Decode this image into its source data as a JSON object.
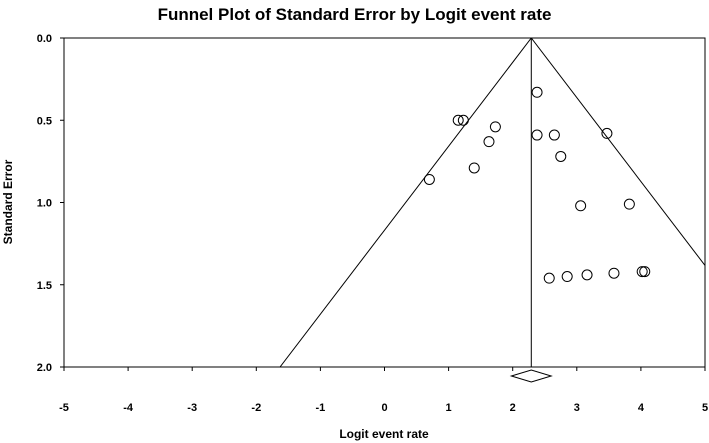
{
  "chart_data": {
    "type": "scatter",
    "title": "Funnel Plot of Standard Error by Logit event rate",
    "xlabel": "Logit event rate",
    "ylabel": "Standard Error",
    "xlim": [
      -5,
      5
    ],
    "ylim": [
      2.0,
      0.0
    ],
    "y_axis_inverted": true,
    "x_ticks": [
      "-5",
      "-4",
      "-3",
      "-2",
      "-1",
      "0",
      "1",
      "2",
      "3",
      "4",
      "5"
    ],
    "y_ticks": [
      "0.0",
      "0.5",
      "1.0",
      "1.5",
      "2.0"
    ],
    "grid": false,
    "legend": "none",
    "marker": "open-circle",
    "summary_estimate": 2.29,
    "funnel_z": 1.96,
    "points": [
      {
        "x": 2.38,
        "y": 0.33
      },
      {
        "x": 1.15,
        "y": 0.5
      },
      {
        "x": 1.23,
        "y": 0.5
      },
      {
        "x": 1.73,
        "y": 0.54
      },
      {
        "x": 2.38,
        "y": 0.59
      },
      {
        "x": 2.65,
        "y": 0.59
      },
      {
        "x": 3.47,
        "y": 0.58
      },
      {
        "x": 1.63,
        "y": 0.63
      },
      {
        "x": 2.75,
        "y": 0.72
      },
      {
        "x": 1.4,
        "y": 0.79
      },
      {
        "x": 0.7,
        "y": 0.86
      },
      {
        "x": 3.06,
        "y": 1.02
      },
      {
        "x": 3.82,
        "y": 1.01
      },
      {
        "x": 2.57,
        "y": 1.46
      },
      {
        "x": 2.85,
        "y": 1.45
      },
      {
        "x": 3.16,
        "y": 1.44
      },
      {
        "x": 3.58,
        "y": 1.43
      },
      {
        "x": 4.02,
        "y": 1.42
      },
      {
        "x": 4.06,
        "y": 1.42
      }
    ],
    "diamond": {
      "center": 2.29,
      "lower": 1.98,
      "upper": 2.6
    }
  }
}
